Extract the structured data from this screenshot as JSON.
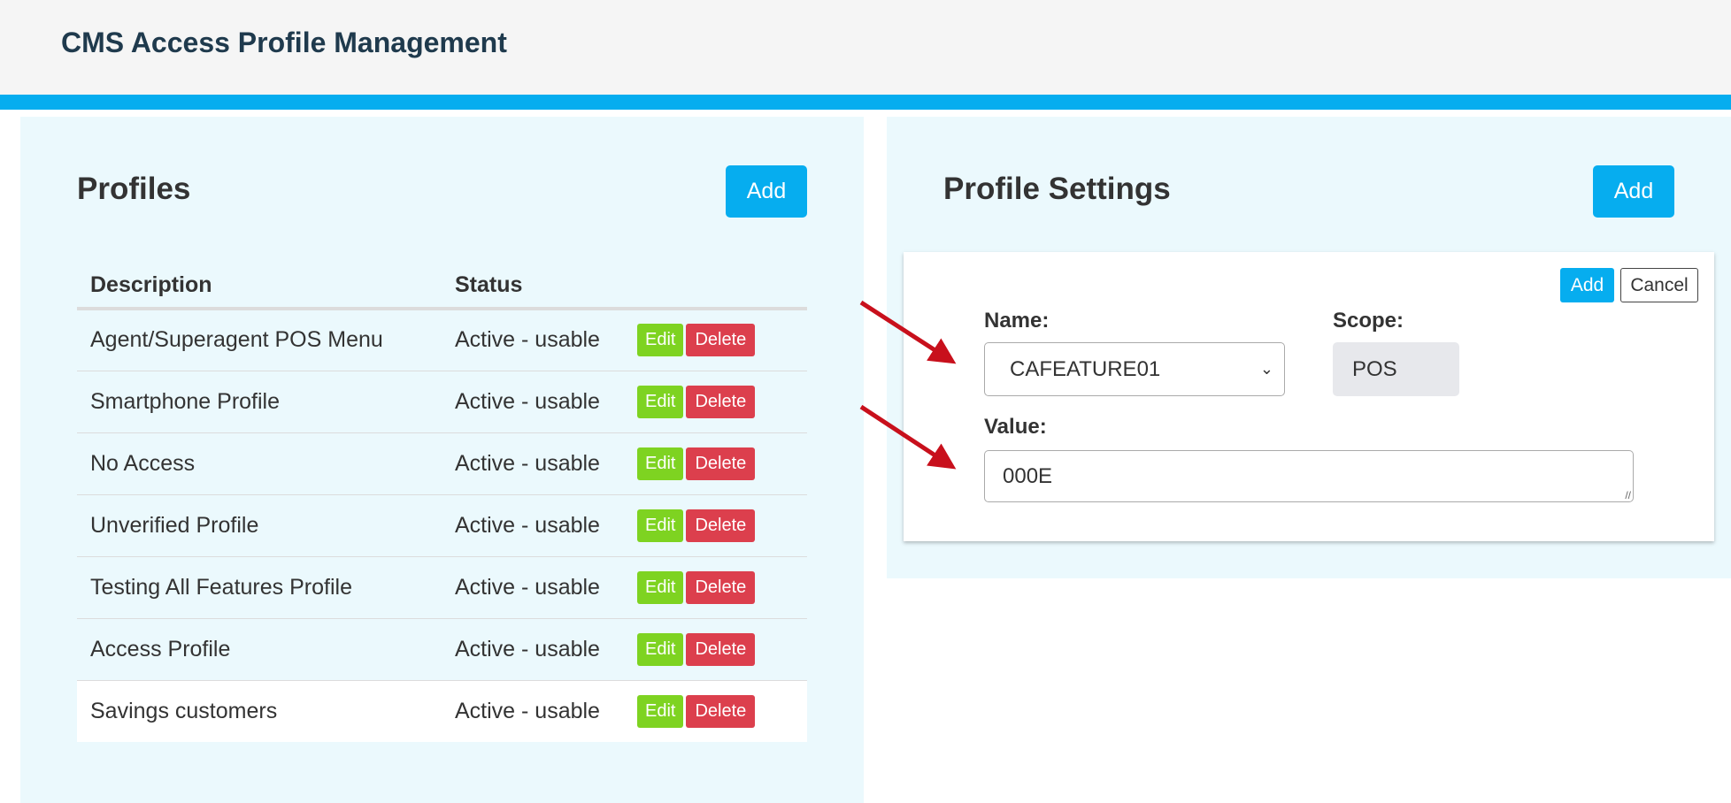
{
  "header": {
    "title": "CMS Access Profile Management"
  },
  "colors": {
    "accent": "#06adef",
    "edit": "#7ed321",
    "delete": "#dc3f4d",
    "panel": "#ebf9fd"
  },
  "profiles": {
    "title": "Profiles",
    "add_label": "Add",
    "columns": [
      "Description",
      "Status"
    ],
    "rows": [
      {
        "description": "Agent/Superagent POS Menu",
        "status": "Active - usable"
      },
      {
        "description": "Smartphone Profile",
        "status": "Active - usable"
      },
      {
        "description": "No Access",
        "status": "Active - usable"
      },
      {
        "description": "Unverified Profile",
        "status": "Active - usable"
      },
      {
        "description": "Testing All Features Profile",
        "status": "Active - usable"
      },
      {
        "description": "Access Profile",
        "status": "Active - usable"
      },
      {
        "description": "Savings customers",
        "status": "Active - usable"
      }
    ],
    "edit_label": "Edit",
    "delete_label": "Delete"
  },
  "settings": {
    "title": "Profile Settings",
    "add_label": "Add",
    "form": {
      "add_label": "Add",
      "cancel_label": "Cancel",
      "name_label": "Name:",
      "name_value": "CAFEATURE01",
      "scope_label": "Scope:",
      "scope_value": "POS",
      "value_label": "Value:",
      "value_value": "000E"
    }
  }
}
